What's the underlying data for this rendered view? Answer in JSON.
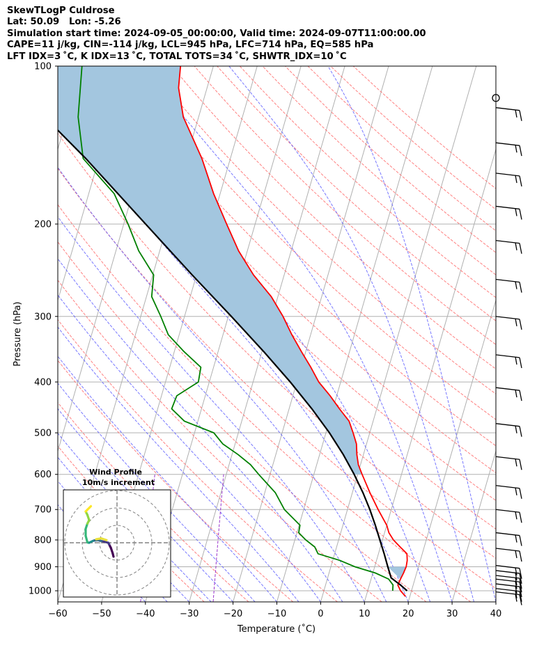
{
  "header": {
    "line1": "SkewTLogP Culdrose",
    "line2": "Lat: 50.09   Lon: -5.26",
    "line3": "Simulation start time: 2024-09-05_00:00:00, Valid time: 2024-09-07T11:00:00.00",
    "line4": "CAPE=11 j/kg, CIN=-114 j/kg, LCL=945 hPa, LFC=714 hPa, EQ=585 hPa",
    "line5": "LFT IDX=3 ˚C, K IDX=13 ˚C, TOTAL TOTS=34 ˚C, SHWTR_IDX=10 ˚C"
  },
  "colors": {
    "temperature": "#ff0000",
    "dewpoint": "#008000",
    "parcel": "#000000",
    "cape_fill": "#a3c6df",
    "dry_adiabat": "#ff6a6a",
    "moist_adiabat": "#5555ff",
    "mixing_ratio": "#9933cc",
    "isotherm": "#b0b0b0",
    "grid": "#b0b0b0"
  },
  "chart_data": {
    "type": "skew-t log-p",
    "xlabel": "Temperature (˚C)",
    "ylabel": "Pressure (hPa)",
    "xlim": [
      -60,
      40
    ],
    "ylim": [
      1050,
      100
    ],
    "x_ticks": [
      "−60",
      "−50",
      "−40",
      "−30",
      "−20",
      "−10",
      "0",
      "10",
      "20",
      "30",
      "40"
    ],
    "y_ticks": [
      100,
      200,
      300,
      400,
      500,
      600,
      700,
      800,
      900,
      1000
    ],
    "series": [
      {
        "name": "Temperature",
        "points": [
          [
            1025,
            19
          ],
          [
            1000,
            17.5
          ],
          [
            975,
            16.5
          ],
          [
            950,
            16.7
          ],
          [
            925,
            17
          ],
          [
            900,
            17.2
          ],
          [
            875,
            17
          ],
          [
            850,
            16.5
          ],
          [
            825,
            14.5
          ],
          [
            800,
            12.5
          ],
          [
            775,
            11
          ],
          [
            750,
            10
          ],
          [
            700,
            7
          ],
          [
            650,
            4
          ],
          [
            600,
            1
          ],
          [
            575,
            -0.5
          ],
          [
            550,
            -1.5
          ],
          [
            525,
            -2.3
          ],
          [
            500,
            -3.8
          ],
          [
            475,
            -5.5
          ],
          [
            450,
            -8.5
          ],
          [
            425,
            -11.5
          ],
          [
            400,
            -15
          ],
          [
            375,
            -17.8
          ],
          [
            350,
            -21
          ],
          [
            325,
            -24.3
          ],
          [
            300,
            -27.5
          ],
          [
            275,
            -31.5
          ],
          [
            250,
            -37
          ],
          [
            225,
            -42
          ],
          [
            200,
            -46.5
          ],
          [
            175,
            -51.5
          ],
          [
            150,
            -56.5
          ],
          [
            125,
            -63.5
          ],
          [
            110,
            -66.5
          ],
          [
            100,
            -67.5
          ]
        ]
      },
      {
        "name": "Dewpoint",
        "points": [
          [
            1000,
            15.7
          ],
          [
            975,
            15.4
          ],
          [
            950,
            14
          ],
          [
            925,
            10.6
          ],
          [
            900,
            5.5
          ],
          [
            875,
            1.6
          ],
          [
            850,
            -3.8
          ],
          [
            825,
            -5
          ],
          [
            800,
            -7.5
          ],
          [
            775,
            -9.6
          ],
          [
            750,
            -9.8
          ],
          [
            700,
            -14.4
          ],
          [
            650,
            -17.6
          ],
          [
            600,
            -22.6
          ],
          [
            575,
            -25.1
          ],
          [
            550,
            -28.6
          ],
          [
            525,
            -32.8
          ],
          [
            500,
            -35.6
          ],
          [
            475,
            -43.1
          ],
          [
            450,
            -46.8
          ],
          [
            425,
            -46.5
          ],
          [
            400,
            -42.5
          ],
          [
            375,
            -42.9
          ],
          [
            350,
            -47.8
          ],
          [
            325,
            -52.5
          ],
          [
            300,
            -55.4
          ],
          [
            275,
            -58.8
          ],
          [
            250,
            -59.8
          ],
          [
            225,
            -64.8
          ],
          [
            200,
            -69
          ],
          [
            175,
            -74.2
          ],
          [
            150,
            -83.6
          ],
          [
            125,
            -87.5
          ],
          [
            100,
            -90
          ]
        ]
      },
      {
        "name": "Parcel",
        "points": [
          [
            1000,
            19
          ],
          [
            975,
            17.1
          ],
          [
            945,
            14.5
          ],
          [
            900,
            13
          ],
          [
            850,
            11.3
          ],
          [
            800,
            9.4
          ],
          [
            750,
            7.4
          ],
          [
            700,
            5.1
          ],
          [
            650,
            2.4
          ],
          [
            600,
            -0.8
          ],
          [
            550,
            -4.6
          ],
          [
            500,
            -9.2
          ],
          [
            450,
            -14.8
          ],
          [
            400,
            -21.5
          ],
          [
            350,
            -29.6
          ],
          [
            300,
            -39.3
          ],
          [
            250,
            -51
          ],
          [
            200,
            -65
          ],
          [
            150,
            -83
          ],
          [
            100,
            -110
          ]
        ]
      }
    ],
    "cape_region": "Between parcel and temperature from 585 hPa to 100 hPa (shaded)",
    "wind_barbs": {
      "levels": [
        1005,
        990,
        970,
        950,
        935,
        915,
        895,
        830,
        775,
        700,
        630,
        555,
        480,
        410,
        355,
        300,
        255,
        215,
        185,
        160,
        140,
        120
      ],
      "calm_level": 115
    },
    "hodograph": {
      "title": "Wind Profile",
      "subtitle": "10m/s increment",
      "u": [
        -2,
        -2.5,
        -3.5,
        -4.5,
        -5,
        -7,
        -9,
        -11,
        -13,
        -14,
        -15,
        -16,
        -17,
        -18,
        -18,
        -17,
        -16,
        -17,
        -18,
        -17,
        -15,
        -12,
        -9,
        -6
      ],
      "v": [
        -8,
        -6,
        -3,
        -1,
        0,
        0.5,
        1,
        1.5,
        1.3,
        1,
        0.5,
        0,
        0.2,
        4,
        8,
        11,
        13,
        16,
        18,
        19,
        21,
        2,
        2.5,
        1.5
      ]
    }
  }
}
